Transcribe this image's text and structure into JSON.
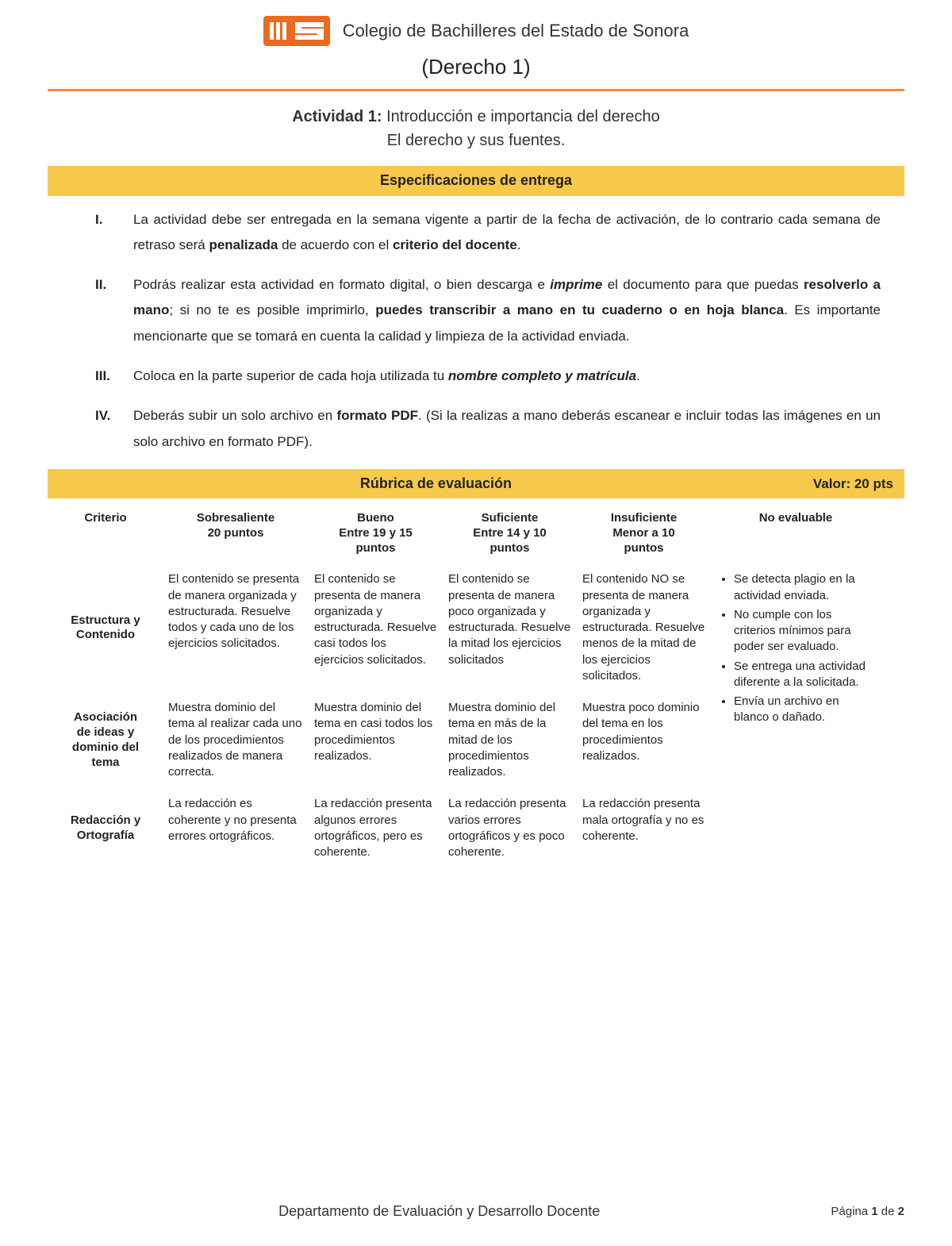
{
  "header": {
    "institution": "Colegio de Bachilleres del Estado de Sonora",
    "course": "(Derecho 1)",
    "logo_bg": "#ea6a20",
    "logo_fg": "#ffffff"
  },
  "activity": {
    "label": "Actividad 1:",
    "title": "Introducción e importancia del derecho",
    "subtitle": "El derecho y sus fuentes."
  },
  "spec_banner": "Especificaciones de entrega",
  "specs": [
    {
      "roman": "I.",
      "html": "La actividad debe ser entregada en la semana vigente a partir de la fecha de activación, de lo contrario cada semana de retraso será <span class='b'>penalizada</span> de acuerdo con el <span class='b'>criterio del docente</span>."
    },
    {
      "roman": "II.",
      "html": "Podrás realizar esta actividad en formato digital, o bien descarga e <span class='bi'>imprime</span> el documento para que puedas <span class='b'>resolverlo a mano</span>; si no te es posible imprimirlo, <span class='b'>puedes transcribir a mano en tu cuaderno o en hoja blanca</span>. Es importante mencionarte que se tomará en cuenta la calidad y limpieza de la actividad enviada."
    },
    {
      "roman": "III.",
      "html": "Coloca en la parte superior de cada hoja utilizada tu <span class='bi'>nombre completo y matrícula</span>."
    },
    {
      "roman": "IV.",
      "html": "Deberás subir un solo archivo en <span class='b'>formato PDF</span>. (Si la realizas a mano deberás escanear e incluir todas las imágenes en un solo archivo en formato PDF)."
    }
  ],
  "rubric": {
    "banner_title": "Rúbrica de evaluación",
    "banner_value": "Valor: 20 pts",
    "headers": {
      "c0": "Criterio",
      "c1": "Sobresaliente\n20 puntos",
      "c2": "Bueno\nEntre 19 y 15\npuntos",
      "c3": "Suficiente\nEntre 14 y 10\npuntos",
      "c4": "Insuficiente\nMenor a 10\npuntos",
      "c5": "No evaluable"
    },
    "rows": [
      {
        "label": "Estructura y\nContenido",
        "c1": "El contenido se presenta de manera organizada y estructurada. Resuelve todos y cada uno de los ejercicios solicitados.",
        "c2": "El contenido se presenta de manera organizada y estructurada. Resuelve casi todos los ejercicios solicitados.",
        "c3": "El contenido se presenta de manera poco organizada y estructurada. Resuelve la mitad los ejercicios solicitados",
        "c4": "El contenido NO se presenta de manera organizada y estructurada. Resuelve menos de la mitad de los ejercicios solicitados."
      },
      {
        "label": "Asociación\nde ideas y\ndominio del\ntema",
        "c1": "Muestra dominio del tema al realizar cada uno de los procedimientos realizados de manera correcta.",
        "c2": "Muestra dominio del tema en casi todos los procedimientos realizados.",
        "c3": "Muestra dominio del tema en más de la mitad de los procedimientos realizados.",
        "c4": "Muestra poco dominio del tema en los procedimientos realizados."
      },
      {
        "label": "Redacción y\nOrtografía",
        "c1": "La redacción es coherente y no presenta errores ortográficos.",
        "c2": "La redacción presenta algunos errores ortográficos, pero es coherente.",
        "c3": "La redacción presenta varios errores ortográficos y es poco coherente.",
        "c4": "La redacción presenta mala ortografía y no es coherente."
      }
    ],
    "no_evaluable": [
      "Se detecta plagio en la actividad enviada.",
      "No cumple con los criterios mínimos para poder ser evaluado.",
      "Se entrega una actividad diferente a la solicitada.",
      "Envía un archivo en blanco o dañado."
    ]
  },
  "footer": {
    "dept": "Departamento de Evaluación y Desarrollo Docente",
    "page_prefix": "Página ",
    "page_cur": "1",
    "page_mid": " de ",
    "page_total": "2"
  },
  "colors": {
    "banner_bg": "#f7c94a",
    "rule": "#f58a3c",
    "text": "#222222"
  }
}
